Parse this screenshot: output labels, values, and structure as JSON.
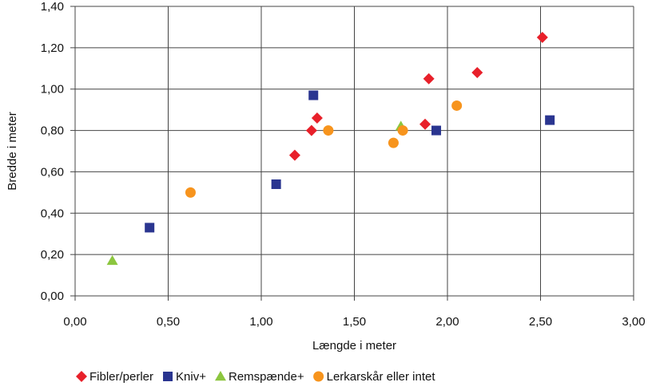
{
  "chart_data": {
    "type": "scatter",
    "xlabel": "Længde i meter",
    "ylabel": "Bredde i meter",
    "xlim": [
      0,
      3
    ],
    "ylim": [
      0,
      1.4
    ],
    "x_ticks": [
      "0,00",
      "0,50",
      "1,00",
      "1,50",
      "2,00",
      "2,50",
      "3,00"
    ],
    "y_ticks": [
      "0,00",
      "0,20",
      "0,40",
      "0,60",
      "0,80",
      "1,00",
      "1,20",
      "1,40"
    ],
    "grid": true,
    "legend_position": "bottom",
    "series": [
      {
        "name": "Fibler/perler",
        "marker": "diamond",
        "color": "#e8202a",
        "points": [
          [
            1.18,
            0.68
          ],
          [
            1.27,
            0.8
          ],
          [
            1.3,
            0.86
          ],
          [
            1.88,
            0.83
          ],
          [
            1.9,
            1.05
          ],
          [
            2.16,
            1.08
          ],
          [
            2.51,
            1.25
          ]
        ]
      },
      {
        "name": "Kniv+",
        "marker": "square",
        "color": "#2a3590",
        "points": [
          [
            0.4,
            0.33
          ],
          [
            1.08,
            0.54
          ],
          [
            1.28,
            0.97
          ],
          [
            1.94,
            0.8
          ],
          [
            2.55,
            0.85
          ]
        ]
      },
      {
        "name": "Remspænde+",
        "marker": "triangle",
        "color": "#8cc63f",
        "points": [
          [
            0.2,
            0.17
          ],
          [
            1.75,
            0.82
          ]
        ]
      },
      {
        "name": "Lerkarskår eller intet",
        "marker": "circle",
        "color": "#f7941d",
        "points": [
          [
            0.62,
            0.5
          ],
          [
            1.36,
            0.8
          ],
          [
            1.71,
            0.74
          ],
          [
            1.76,
            0.8
          ],
          [
            2.05,
            0.92
          ]
        ]
      }
    ]
  }
}
